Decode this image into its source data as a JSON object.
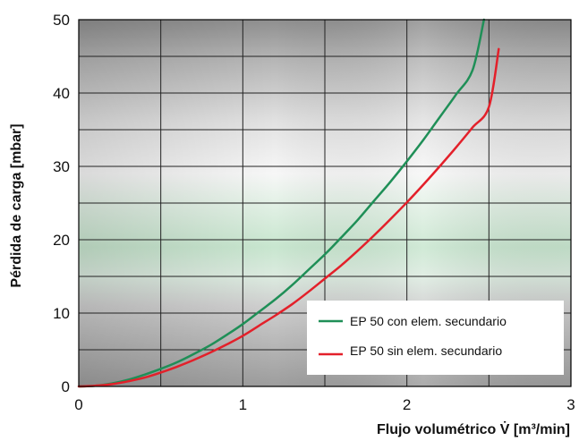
{
  "chart_data": {
    "type": "line",
    "xlabel": "Flujo volumétrico V̇ [m³/min]",
    "ylabel": "Pérdida de carga [mbar]",
    "xlim": [
      0,
      3
    ],
    "ylim": [
      0,
      50
    ],
    "xticks": [
      "0",
      "1",
      "2",
      "3"
    ],
    "yticks": [
      "0",
      "10",
      "20",
      "30",
      "40",
      "50"
    ],
    "grid": true,
    "legend_position": "bottom-right",
    "series": [
      {
        "name": "EP 50 con elem. secundario",
        "color": "#1f8f57",
        "x": [
          0,
          0.1,
          0.2,
          0.3,
          0.4,
          0.5,
          0.6,
          0.7,
          0.8,
          0.9,
          1.0,
          1.1,
          1.2,
          1.3,
          1.4,
          1.5,
          1.6,
          1.7,
          1.8,
          1.9,
          2.0,
          2.1,
          2.2,
          2.3,
          2.4,
          2.47
        ],
        "y": [
          0,
          0.1,
          0.4,
          0.9,
          1.6,
          2.4,
          3.3,
          4.4,
          5.6,
          7.0,
          8.5,
          10.2,
          11.9,
          13.8,
          15.9,
          18.0,
          20.3,
          22.7,
          25.3,
          27.9,
          30.7,
          33.6,
          36.7,
          39.8,
          43.1,
          50.0
        ]
      },
      {
        "name": "EP 50 sin elem. secundario",
        "color": "#e3202a",
        "x": [
          0,
          0.1,
          0.2,
          0.3,
          0.4,
          0.5,
          0.6,
          0.7,
          0.8,
          0.9,
          1.0,
          1.1,
          1.2,
          1.3,
          1.4,
          1.5,
          1.6,
          1.7,
          1.8,
          1.9,
          2.0,
          2.1,
          2.2,
          2.3,
          2.4,
          2.5,
          2.56
        ],
        "y": [
          0,
          0.1,
          0.3,
          0.7,
          1.2,
          1.9,
          2.7,
          3.6,
          4.6,
          5.7,
          6.9,
          8.3,
          9.7,
          11.2,
          12.9,
          14.7,
          16.5,
          18.5,
          20.6,
          22.8,
          25.1,
          27.5,
          30.0,
          32.6,
          35.3,
          38.1,
          46.0
        ]
      }
    ]
  }
}
